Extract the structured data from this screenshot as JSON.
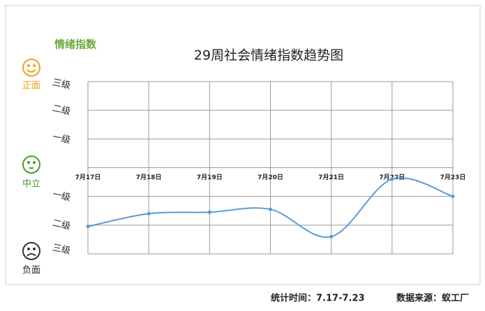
{
  "chart_data": {
    "type": "line",
    "title": "29周社会情绪指数趋势图",
    "y_label": "情绪指数",
    "sentiment_labels": [
      "正面",
      "中立",
      "负面"
    ],
    "annotations": [
      "统计时间：7.17-7.23",
      "数据来源：蚁工厂"
    ],
    "categories": [
      "7月17日",
      "7月18日",
      "7月19日",
      "7月20日",
      "7月21日",
      "7月22日",
      "7月23日"
    ],
    "series": [
      {
        "name": "情绪指数",
        "color": "#5b9bd5",
        "values": [
          -2.05,
          -1.6,
          -1.55,
          -1.45,
          -2.4,
          -0.4,
          -1.0
        ]
      }
    ],
    "ylim": [
      -3,
      3
    ],
    "yticks": [
      {
        "value": 3,
        "label": "三级"
      },
      {
        "value": 2,
        "label": "二级"
      },
      {
        "value": 1,
        "label": "一级"
      },
      {
        "value": -1,
        "label": "一级"
      },
      {
        "value": -2,
        "label": "二级"
      },
      {
        "value": -3,
        "label": "三级"
      }
    ],
    "grid": true
  }
}
